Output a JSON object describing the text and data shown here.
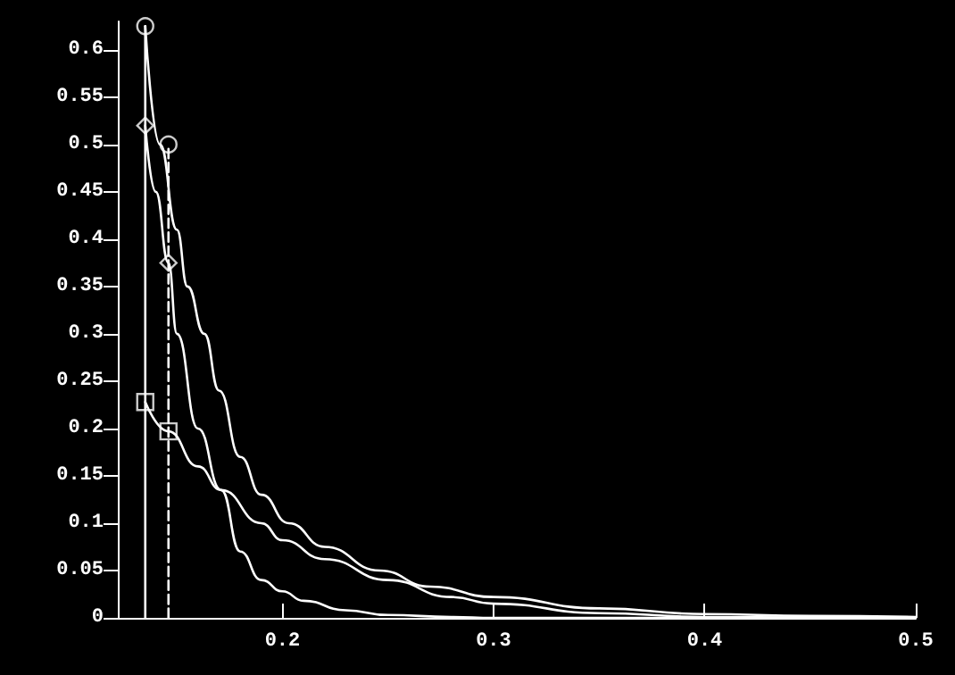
{
  "chart_data": {
    "type": "line",
    "xlim": [
      0.122,
      0.5
    ],
    "xticks": [
      0.2,
      0.3,
      0.4,
      0.5
    ],
    "ylim": [
      0,
      0.63
    ],
    "yticks": [
      0,
      0.05,
      0.1,
      0.15,
      0.2,
      0.25,
      0.3,
      0.35,
      0.4,
      0.45,
      0.5,
      0.55,
      0.6
    ],
    "grid": false,
    "series": [
      {
        "marker": "none",
        "line_style": "solid",
        "color": "#ffffff",
        "x": [
          0.135,
          0.142,
          0.15,
          0.155,
          0.163,
          0.17,
          0.18,
          0.19,
          0.203,
          0.22,
          0.246,
          0.27,
          0.3,
          0.35,
          0.4,
          0.45,
          0.5
        ],
        "values": [
          0.625,
          0.5,
          0.41,
          0.35,
          0.3,
          0.24,
          0.17,
          0.13,
          0.1,
          0.075,
          0.05,
          0.033,
          0.022,
          0.01,
          0.004,
          0.002,
          0.001
        ]
      },
      {
        "marker": "none",
        "line_style": "solid",
        "color": "#ffffff",
        "x": [
          0.135,
          0.14,
          0.146,
          0.15,
          0.16,
          0.171,
          0.18,
          0.19,
          0.2,
          0.21,
          0.23,
          0.25,
          0.28,
          0.3,
          0.4,
          0.5
        ],
        "values": [
          0.52,
          0.45,
          0.375,
          0.3,
          0.2,
          0.135,
          0.07,
          0.04,
          0.028,
          0.018,
          0.008,
          0.003,
          0.001,
          0,
          0,
          0
        ]
      },
      {
        "marker": "none",
        "line_style": "solid",
        "color": "#ffffff",
        "x": [
          0.135,
          0.146,
          0.16,
          0.171,
          0.19,
          0.2,
          0.22,
          0.25,
          0.28,
          0.3,
          0.35,
          0.4,
          0.5
        ],
        "values": [
          0.228,
          0.197,
          0.16,
          0.135,
          0.1,
          0.082,
          0.062,
          0.04,
          0.022,
          0.015,
          0.005,
          0.001,
          0
        ]
      },
      {
        "marker": "none",
        "line_style": "solid",
        "color": "#ffffff",
        "x": [
          0.135,
          0.135
        ],
        "values": [
          0,
          0.625
        ]
      },
      {
        "marker": "none",
        "line_style": "dashed",
        "color": "#ffffff",
        "x": [
          0.146,
          0.146
        ],
        "values": [
          0,
          0.5
        ]
      },
      {
        "type": "scatter",
        "marker": "circle",
        "color": "#ffffff",
        "x": [
          0.135,
          0.146
        ],
        "values": [
          0.625,
          0.5
        ]
      },
      {
        "type": "scatter",
        "marker": "diamond",
        "color": "#ffffff",
        "x": [
          0.135,
          0.146
        ],
        "values": [
          0.52,
          0.375
        ]
      },
      {
        "type": "scatter",
        "marker": "square",
        "color": "#ffffff",
        "x": [
          0.135,
          0.146
        ],
        "values": [
          0.228,
          0.197
        ]
      }
    ]
  }
}
